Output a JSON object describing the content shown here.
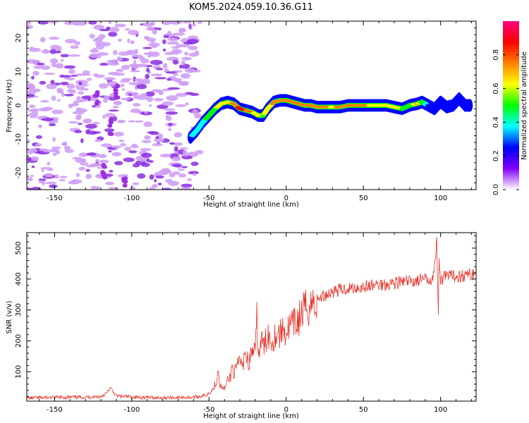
{
  "chart_data": [
    {
      "type": "heatmap",
      "title": "KOM5.2024.059.10.36.G11",
      "xlabel": "Height of straight line (km)",
      "ylabel": "Frequency (Hz)",
      "xlim": [
        -168,
        123
      ],
      "ylim": [
        -25,
        25
      ],
      "xticks": [
        -150,
        -100,
        -50,
        0,
        50,
        100
      ],
      "yticks": [
        20,
        10,
        0,
        -10,
        -20
      ],
      "grid": false,
      "ridge": {
        "x": [
          -62,
          -58,
          -54,
          -50,
          -46,
          -42,
          -38,
          -34,
          -30,
          -26,
          -22,
          -18,
          -15,
          -12,
          -8,
          -4,
          0,
          4,
          8,
          12,
          16,
          20,
          25,
          30,
          35,
          40,
          45,
          50,
          55,
          60,
          65,
          70,
          75,
          80,
          85,
          88,
          92,
          96,
          100,
          104,
          108,
          112,
          116,
          120
        ],
        "freq_hz": [
          -9.5,
          -7.5,
          -5,
          -3,
          -1,
          0.5,
          1,
          0.5,
          -1,
          -1.5,
          -2,
          -3,
          -3,
          -1,
          1,
          1.5,
          1.5,
          1,
          0.5,
          0,
          0,
          -0.5,
          -0.5,
          -0.5,
          -0.5,
          0,
          0,
          0,
          0,
          0,
          0,
          -0.5,
          -1,
          0,
          0.5,
          1,
          0,
          -1,
          1,
          -0.5,
          0,
          2,
          0,
          0
        ],
        "amplitude": [
          0.3,
          0.35,
          0.4,
          0.5,
          0.55,
          0.6,
          0.65,
          0.7,
          0.85,
          0.8,
          0.7,
          0.6,
          0.55,
          0.6,
          0.75,
          0.8,
          0.8,
          0.78,
          0.75,
          0.72,
          0.7,
          0.72,
          0.7,
          0.68,
          0.7,
          0.7,
          0.72,
          0.7,
          0.68,
          0.65,
          0.62,
          0.6,
          0.55,
          0.5,
          0.7,
          0.5,
          0.3,
          0.25,
          0.25,
          0.22,
          0.22,
          0.2,
          0.2,
          0.2
        ]
      },
      "colorbar": {
        "label": "Normalized spectral amplitude",
        "ticks": [
          0.0,
          0.2,
          0.4,
          0.6,
          0.8
        ],
        "range": [
          0,
          1
        ],
        "colors": [
          "#ffffff",
          "#8000ff",
          "#0000ff",
          "#00ffff",
          "#00ff00",
          "#ffff00",
          "#ff8000",
          "#ff0000",
          "#ff0080"
        ]
      }
    },
    {
      "type": "line",
      "xlabel": "Height of straight line (km)",
      "ylabel": "SNR (v/v)",
      "xlim": [
        -168,
        123
      ],
      "ylim": [
        5,
        550
      ],
      "xticks": [
        -150,
        -100,
        -50,
        0,
        50,
        100
      ],
      "yticks": [
        100,
        200,
        300,
        400,
        500
      ],
      "grid": false,
      "series": [
        {
          "color": "#e8342a",
          "x": [
            -168,
            -150,
            -130,
            -120,
            -116,
            -114,
            -110,
            -100,
            -80,
            -60,
            -52,
            -48,
            -45,
            -44,
            -43,
            -42,
            -40,
            -38,
            -36,
            -35,
            -34,
            -32,
            -30,
            -28,
            -27,
            -26,
            -24,
            -22,
            -20,
            -19,
            -18,
            -16,
            -14,
            -12,
            -10,
            -8,
            -6,
            -4,
            -2,
            0,
            2,
            4,
            6,
            8,
            10,
            12,
            14,
            16,
            18,
            20,
            22,
            24,
            26,
            28,
            30,
            32,
            34,
            36,
            38,
            40,
            45,
            50,
            55,
            60,
            65,
            70,
            75,
            80,
            85,
            90,
            93,
            95,
            96,
            97,
            97.5,
            98,
            98.5,
            99,
            100,
            102,
            105,
            110,
            115,
            120,
            123
          ],
          "values": [
            15,
            17,
            18,
            20,
            32,
            48,
            22,
            18,
            16,
            18,
            24,
            40,
            70,
            115,
            60,
            50,
            45,
            70,
            85,
            120,
            95,
            110,
            140,
            110,
            180,
            150,
            130,
            170,
            160,
            270,
            150,
            200,
            180,
            230,
            200,
            210,
            230,
            220,
            240,
            225,
            245,
            250,
            255,
            270,
            285,
            300,
            310,
            320,
            325,
            330,
            340,
            345,
            350,
            355,
            360,
            362,
            365,
            365,
            368,
            370,
            372,
            375,
            378,
            382,
            385,
            388,
            390,
            392,
            395,
            398,
            400,
            410,
            440,
            470,
            550,
            380,
            300,
            480,
            390,
            405,
            408,
            410,
            412,
            415,
            420
          ]
        }
      ]
    }
  ]
}
